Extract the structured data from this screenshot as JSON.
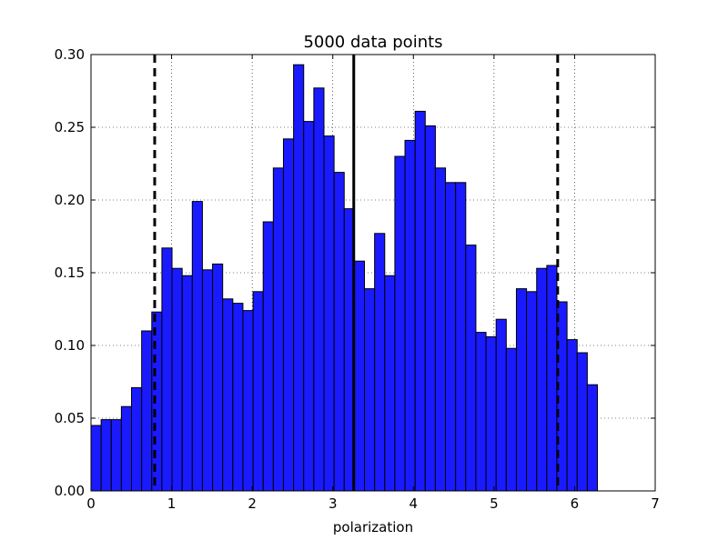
{
  "chart_data": {
    "type": "bar",
    "title": "5000 data points",
    "xlabel": "polarization",
    "ylabel": "",
    "xlim": [
      0,
      7
    ],
    "ylim": [
      0,
      0.3
    ],
    "xticks": [
      0,
      1,
      2,
      3,
      4,
      5,
      6,
      7
    ],
    "xtick_labels": [
      "0",
      "1",
      "2",
      "3",
      "4",
      "5",
      "6",
      "7"
    ],
    "yticks": [
      0.0,
      0.05,
      0.1,
      0.15,
      0.2,
      0.25,
      0.3
    ],
    "ytick_labels": [
      "0.00",
      "0.05",
      "0.10",
      "0.15",
      "0.20",
      "0.25",
      "0.30"
    ],
    "grid": true,
    "bar_color": "#1a1aff",
    "bin_range": [
      0,
      6.2832
    ],
    "bin_count": 50,
    "values": [
      0.045,
      0.049,
      0.049,
      0.058,
      0.071,
      0.11,
      0.123,
      0.167,
      0.153,
      0.148,
      0.199,
      0.152,
      0.156,
      0.132,
      0.129,
      0.124,
      0.137,
      0.185,
      0.222,
      0.242,
      0.293,
      0.254,
      0.277,
      0.244,
      0.219,
      0.194,
      0.158,
      0.139,
      0.177,
      0.148,
      0.23,
      0.241,
      0.261,
      0.251,
      0.222,
      0.212,
      0.212,
      0.169,
      0.109,
      0.106,
      0.118,
      0.098,
      0.139,
      0.137,
      0.153,
      0.155,
      0.13,
      0.104,
      0.095,
      0.073
    ],
    "vlines": [
      {
        "x": 0.79,
        "style": "dashed"
      },
      {
        "x": 3.26,
        "style": "solid"
      },
      {
        "x": 5.79,
        "style": "dashed"
      }
    ]
  }
}
